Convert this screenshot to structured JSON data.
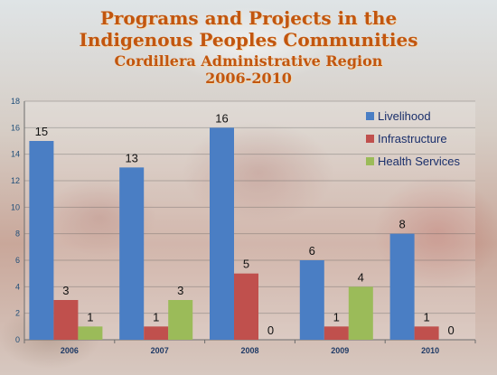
{
  "colors": {
    "livelihood": "#4a7ec4",
    "infrastructure": "#c0504d",
    "health_services": "#9bbb59",
    "title": "#c2560f"
  },
  "chart_data": {
    "type": "bar",
    "title_lines": [
      "Programs  and Projects in the",
      "Indigenous Peoples Communities"
    ],
    "subtitle_lines": [
      "Cordillera Administrative Region",
      "2006-2010"
    ],
    "xlabel": "",
    "ylabel": "",
    "categories": [
      "2006",
      "2007",
      "2008",
      "2009",
      "2010"
    ],
    "ylim": [
      0,
      18
    ],
    "yticks": [
      "0",
      "2",
      "4",
      "6",
      "8",
      "10",
      "12",
      "14",
      "16",
      "18"
    ],
    "grid": true,
    "legend_position": "top-right",
    "series": [
      {
        "name": "Livelihood",
        "color": "#4a7ec4",
        "values": [
          15,
          13,
          16,
          6,
          8
        ]
      },
      {
        "name": "Infrastructure",
        "color": "#c0504d",
        "values": [
          3,
          1,
          5,
          1,
          1
        ]
      },
      {
        "name": "Health Services",
        "color": "#9bbb59",
        "values": [
          1,
          3,
          0,
          4,
          0
        ]
      }
    ]
  }
}
